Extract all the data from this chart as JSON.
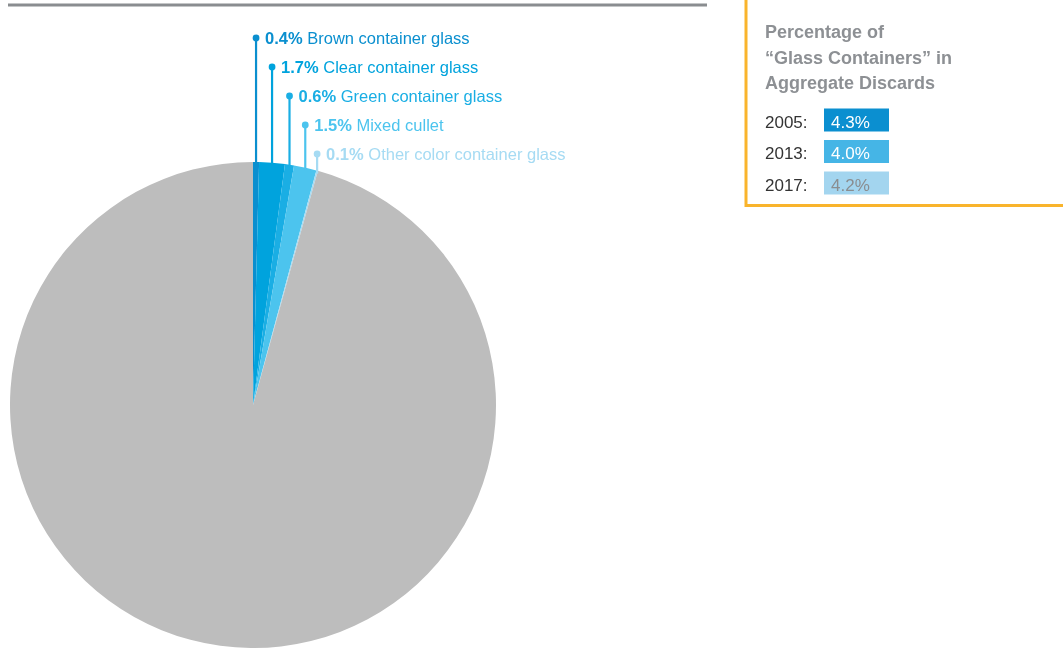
{
  "chart_data": [
    {
      "type": "pie",
      "categories": [
        "Brown container glass",
        "Clear container glass",
        "Green container glass",
        "Mixed cullet",
        "Other color container glass",
        null
      ],
      "values": [
        0.4,
        1.7,
        0.6,
        1.5,
        0.1,
        95.7
      ],
      "colors": [
        "#0a8fcf",
        "#00a3dd",
        "#1aaee4",
        "#4cc4ee",
        "#a6dbf3",
        "#bdbdbd"
      ],
      "value_labels": [
        "0.4%",
        "1.7%",
        "0.6%",
        "1.5%",
        "0.1%",
        null
      ]
    },
    {
      "type": "other",
      "title": "Percentage of\n“Glass Containers” in\nAggregate Discards",
      "annotations": [
        "2005:",
        "2013:",
        "2017:"
      ],
      "value_labels": [
        "4.3%",
        "4.0%",
        "4.2%"
      ],
      "colors": [
        "#0b8fd0",
        "#45b5e6",
        "#a3d5ef"
      ]
    }
  ]
}
